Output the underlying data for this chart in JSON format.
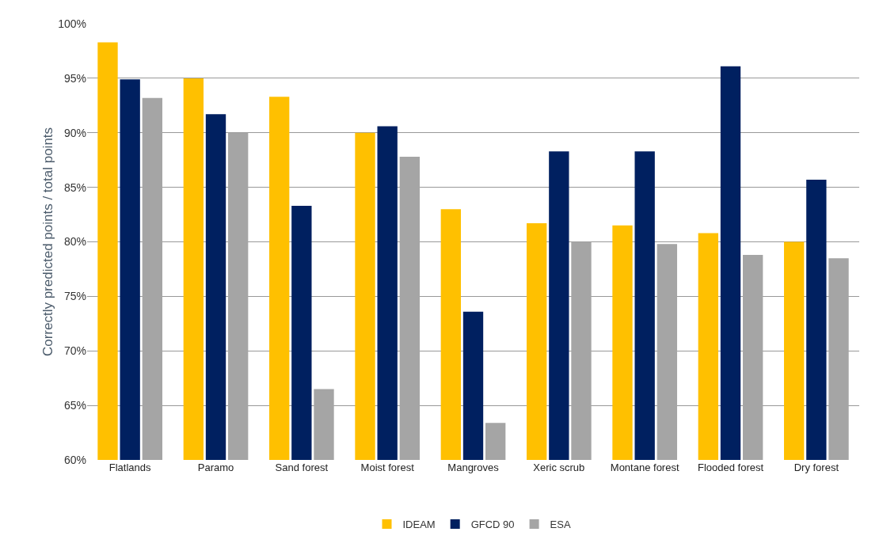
{
  "chart_data": {
    "type": "bar",
    "ylabel": "Correctly predicted points / total points",
    "categories": [
      "Flatlands",
      "Paramo",
      "Sand forest",
      "Moist forest",
      "Mangroves",
      "Xeric scrub",
      "Montane forest",
      "Flooded forest",
      "Dry forest"
    ],
    "series": [
      {
        "name": "IDEAM",
        "color": "#ffc000",
        "values": [
          98.3,
          95.0,
          93.3,
          90.0,
          83.0,
          81.7,
          81.5,
          80.8,
          80.0
        ]
      },
      {
        "name": "GFCD 90",
        "color": "#002060",
        "values": [
          94.9,
          91.7,
          83.3,
          90.6,
          73.6,
          88.3,
          88.3,
          96.1,
          85.7
        ]
      },
      {
        "name": "ESA",
        "color": "#a5a5a5",
        "values": [
          93.2,
          90.0,
          66.5,
          87.8,
          63.4,
          80.0,
          79.8,
          78.8,
          78.5
        ]
      }
    ],
    "ylim": [
      60,
      100
    ],
    "yticks": [
      {
        "value": 60,
        "label": "60%"
      },
      {
        "value": 65,
        "label": "65%"
      },
      {
        "value": 70,
        "label": "70%"
      },
      {
        "value": 75,
        "label": "75%"
      },
      {
        "value": 80,
        "label": "80%"
      },
      {
        "value": 85,
        "label": "85%"
      },
      {
        "value": 90,
        "label": "90%"
      },
      {
        "value": 95,
        "label": "95%"
      },
      {
        "value": 100,
        "label": "100%"
      }
    ],
    "grid": "y",
    "legend": "bottom"
  }
}
